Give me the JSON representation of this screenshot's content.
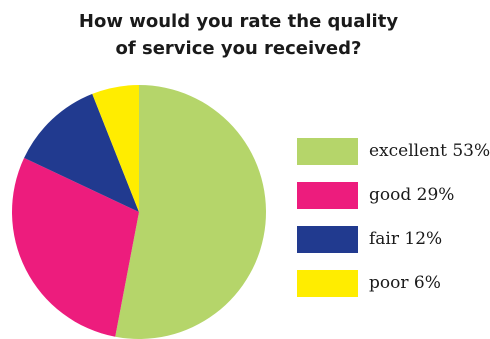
{
  "chart_data": {
    "type": "pie",
    "title_lines": [
      "How would you rate the quality",
      "of service you received?"
    ],
    "slices": [
      {
        "label": "excellent",
        "value": 53,
        "value_text": "53%",
        "color": "#b5d56a"
      },
      {
        "label": "good",
        "value": 29,
        "value_text": "29%",
        "color": "#ed1c7d"
      },
      {
        "label": "fair",
        "value": 12,
        "value_text": "12%",
        "color": "#213a8f"
      },
      {
        "label": "poor",
        "value": 6,
        "value_text": "6%",
        "color": "#ffed00"
      }
    ],
    "start": "top, clockwise",
    "legend_position": "right"
  }
}
